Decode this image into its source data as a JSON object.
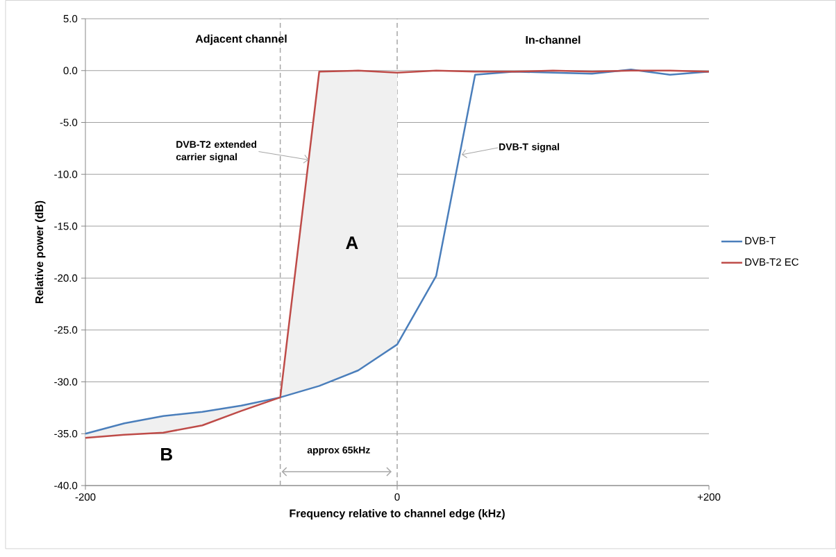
{
  "chart_data": {
    "type": "line",
    "xlabel": "Frequency relative to channel edge (kHz)",
    "ylabel": "Relative power (dB)",
    "x": [
      -200,
      -175,
      -150,
      -125,
      -100,
      -75,
      -50,
      -25,
      0,
      25,
      50,
      75,
      100,
      125,
      150,
      175,
      200
    ],
    "series": [
      {
        "name": "DVB-T",
        "color": "#4a7ebb",
        "values": [
          -35.0,
          -34.0,
          -33.3,
          -32.9,
          -32.3,
          -31.5,
          -30.4,
          -28.9,
          -26.4,
          -19.8,
          -0.4,
          -0.1,
          -0.2,
          -0.3,
          0.1,
          -0.4,
          -0.1
        ]
      },
      {
        "name": "DVB-T2 EC",
        "color": "#be4b48",
        "values": [
          -35.4,
          -35.1,
          -34.9,
          -34.2,
          -32.8,
          -31.5,
          -0.1,
          0.0,
          -0.2,
          0.0,
          -0.1,
          -0.1,
          0.0,
          -0.1,
          0.0,
          0.0,
          -0.1
        ]
      }
    ],
    "xlim": [
      -200,
      200
    ],
    "xticks": [
      {
        "value": -200,
        "label": "-200"
      },
      0,
      {
        "value": 200,
        "label": "+200"
      }
    ],
    "ylim": [
      -40,
      5
    ],
    "yticks": [
      {
        "value": -40,
        "label": "-40.0"
      },
      {
        "value": -35,
        "label": "-35.0"
      },
      {
        "value": -30,
        "label": "-30.0"
      },
      {
        "value": -25,
        "label": "-25.0"
      },
      {
        "value": -20,
        "label": "-20.0"
      },
      {
        "value": -15,
        "label": "-15.0"
      },
      {
        "value": -10,
        "label": "-10.0"
      },
      {
        "value": -5,
        "label": "-5.0"
      },
      {
        "value": 0,
        "label": "0.0"
      },
      {
        "value": 5,
        "label": "5.0"
      }
    ],
    "ref_lines": [
      {
        "axis": "x",
        "value": -75,
        "color": "#a6a6a6",
        "line_style": "dashed"
      },
      {
        "axis": "x",
        "value": 0,
        "color": "#a6a6a6",
        "line_style": "dashed"
      }
    ],
    "annotations": [
      "Adjacent channel",
      "In-channel",
      {
        "text": "DVB-T2 extended carrier signal",
        "x": -56.8,
        "y": -8.6
      },
      {
        "text": "DVB-T signal",
        "x": 41.4,
        "y": -8.1
      },
      "A",
      "B",
      "approx 65kHz"
    ],
    "grid": "y",
    "legend": "right",
    "marker": "none",
    "line_style": "solid"
  }
}
